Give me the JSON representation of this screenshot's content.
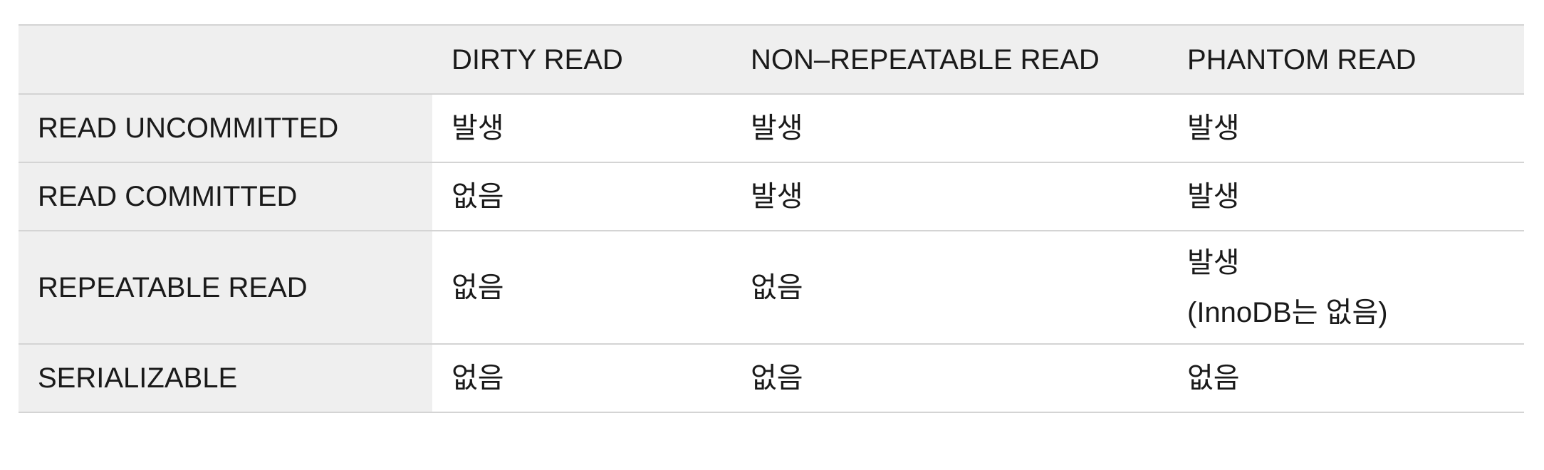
{
  "table": {
    "corner": "",
    "columns": [
      "DIRTY READ",
      "NON–REPEATABLE READ",
      "PHANTOM READ"
    ],
    "rows": [
      {
        "label": "READ UNCOMMITTED",
        "cells": [
          [
            "발생"
          ],
          [
            "발생"
          ],
          [
            "발생"
          ]
        ]
      },
      {
        "label": "READ COMMITTED",
        "cells": [
          [
            "없음"
          ],
          [
            "발생"
          ],
          [
            "발생"
          ]
        ]
      },
      {
        "label": "REPEATABLE READ",
        "cells": [
          [
            "없음"
          ],
          [
            "없음"
          ],
          [
            "발생",
            "(InnoDB는 없음)"
          ]
        ]
      },
      {
        "label": "SERIALIZABLE",
        "cells": [
          [
            "없음"
          ],
          [
            "없음"
          ],
          [
            "없음"
          ]
        ]
      }
    ]
  }
}
